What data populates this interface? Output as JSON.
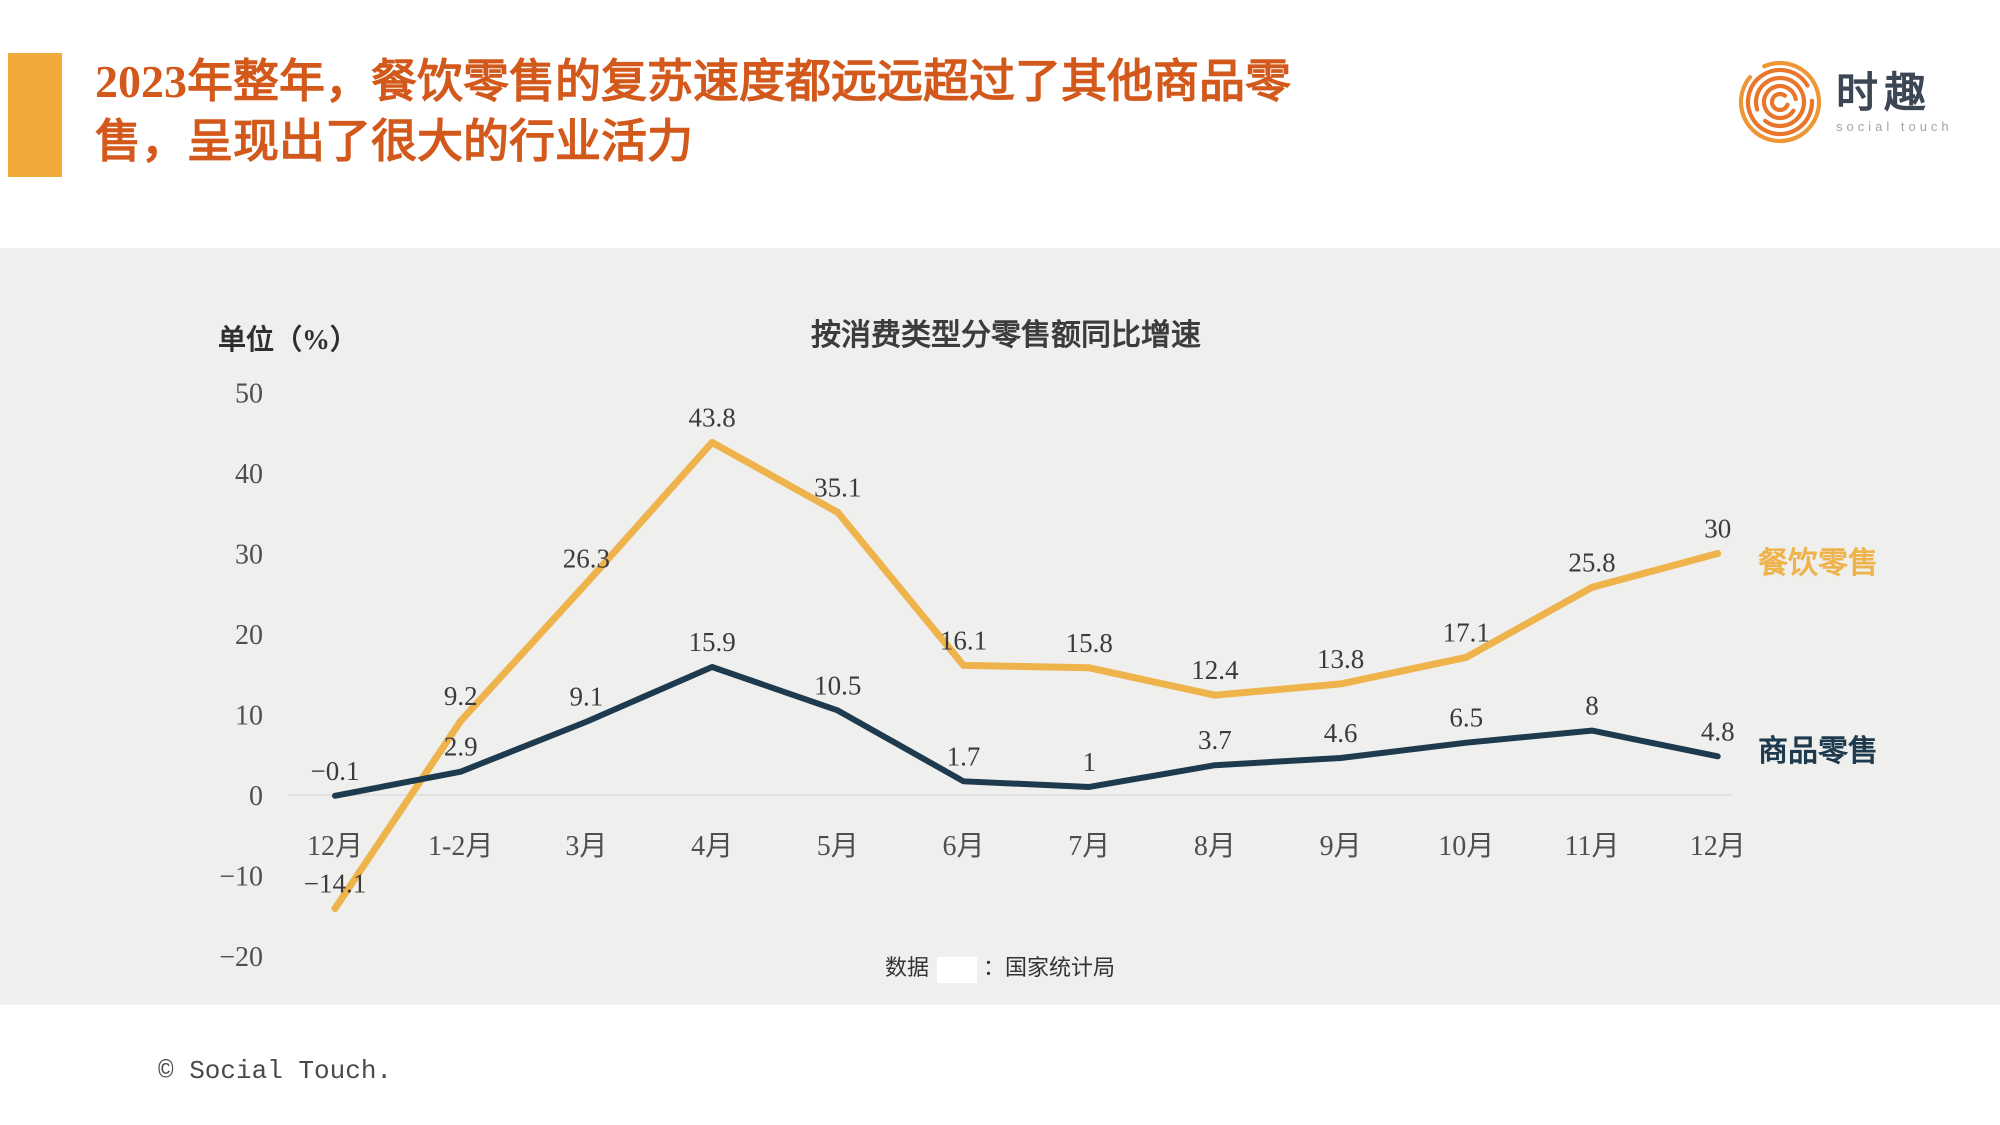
{
  "header": {
    "title": "2023年整年，餐饮零售的复苏速度都远远超过了其他商品零售，呈现出了很大的行业活力",
    "title_color": "#D2591B",
    "accent_color": "#F2A93B",
    "logo": {
      "name": "时趣",
      "subtitle": "social touch",
      "icon_color": "#E8762B"
    }
  },
  "chart_data": {
    "type": "line",
    "title": "按消费类型分零售额同比增速",
    "ylabel": "单位（%）",
    "xlabel": "",
    "categories": [
      "12月",
      "1-2月",
      "3月",
      "4月",
      "5月",
      "6月",
      "7月",
      "8月",
      "9月",
      "10月",
      "11月",
      "12月"
    ],
    "series": [
      {
        "name": "餐饮零售",
        "color": "#EFB34C",
        "values": [
          -14.1,
          9.2,
          26.3,
          43.8,
          35.1,
          16.1,
          15.8,
          12.4,
          13.8,
          17.1,
          25.8,
          30
        ]
      },
      {
        "name": "商品零售",
        "color": "#1E3A4E",
        "values": [
          -0.1,
          2.9,
          9.1,
          15.9,
          10.5,
          1.7,
          1,
          3.7,
          4.6,
          6.5,
          8,
          4.8
        ]
      }
    ],
    "yticks": [
      50,
      40,
      30,
      20,
      10,
      0,
      -10,
      -20
    ],
    "ylim": [
      -20,
      50
    ],
    "grid": "zero-baseline-only",
    "legend_position": "right-of-line-ends",
    "source_prefix": "数据",
    "source_suffix": "：国家统计局"
  },
  "footer": {
    "copyright": "© Social Touch."
  }
}
